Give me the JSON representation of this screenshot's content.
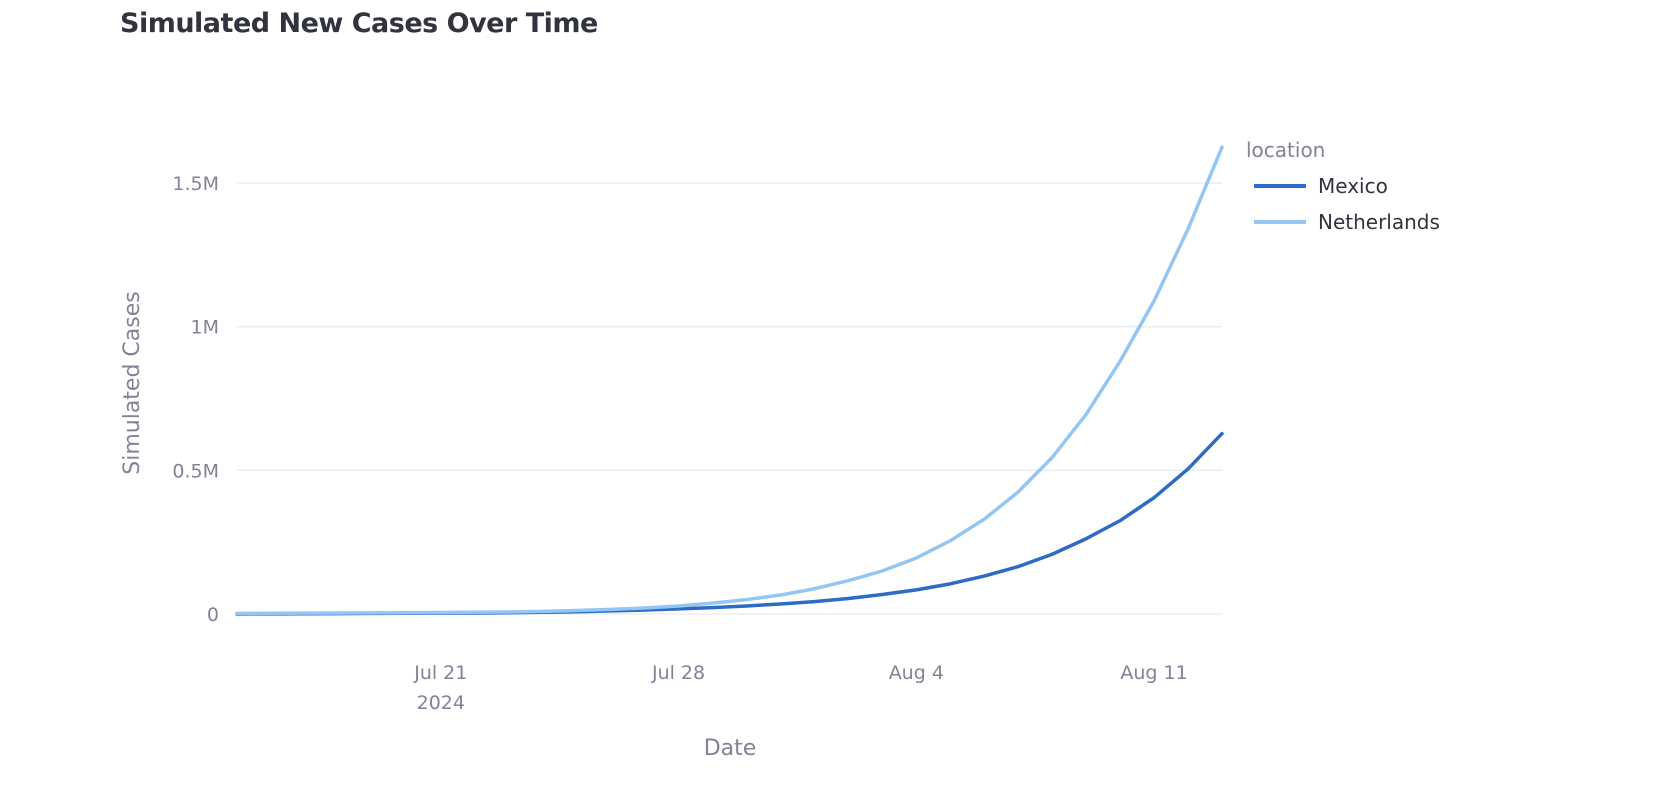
{
  "chart_data": {
    "type": "line",
    "title": "Simulated New Cases Over Time",
    "xlabel": "Date",
    "ylabel": "Simulated Cases",
    "x_domain": [
      "2024-07-15",
      "2024-08-13"
    ],
    "y_domain": [
      0,
      1650000
    ],
    "x_ticks": [
      {
        "date": "2024-07-21",
        "label": "Jul 21",
        "sublabel": "2024"
      },
      {
        "date": "2024-07-28",
        "label": "Jul 28",
        "sublabel": ""
      },
      {
        "date": "2024-08-04",
        "label": "Aug 4",
        "sublabel": ""
      },
      {
        "date": "2024-08-11",
        "label": "Aug 11",
        "sublabel": ""
      }
    ],
    "y_ticks": [
      {
        "value": 0,
        "label": "0"
      },
      {
        "value": 500000,
        "label": "0.5M"
      },
      {
        "value": 1000000,
        "label": "1M"
      },
      {
        "value": 1500000,
        "label": "1.5M"
      }
    ],
    "grid": true,
    "legend": {
      "title": "location",
      "position": "right"
    },
    "x": [
      "2024-07-15",
      "2024-07-16",
      "2024-07-17",
      "2024-07-18",
      "2024-07-19",
      "2024-07-20",
      "2024-07-21",
      "2024-07-22",
      "2024-07-23",
      "2024-07-24",
      "2024-07-25",
      "2024-07-26",
      "2024-07-27",
      "2024-07-28",
      "2024-07-29",
      "2024-07-30",
      "2024-07-31",
      "2024-08-01",
      "2024-08-02",
      "2024-08-03",
      "2024-08-04",
      "2024-08-05",
      "2024-08-06",
      "2024-08-07",
      "2024-08-08",
      "2024-08-09",
      "2024-08-10",
      "2024-08-11",
      "2024-08-12",
      "2024-08-13"
    ],
    "series": [
      {
        "name": "Mexico",
        "color": "#2e6bc4",
        "values": [
          0,
          500,
          1000,
          1500,
          2000,
          2500,
          3000,
          3500,
          4500,
          6000,
          8000,
          11000,
          14000,
          18000,
          22000,
          28000,
          35000,
          43000,
          54000,
          68000,
          84000,
          105000,
          132000,
          165000,
          208000,
          262000,
          325000,
          405000,
          505000,
          628000
        ]
      },
      {
        "name": "Netherlands",
        "color": "#93c6f2",
        "values": [
          2000,
          2500,
          3000,
          3500,
          4000,
          4500,
          5000,
          6000,
          7000,
          9000,
          12000,
          16000,
          21000,
          28000,
          38000,
          50000,
          66000,
          88000,
          116000,
          150000,
          195000,
          255000,
          330000,
          425000,
          545000,
          695000,
          880000,
          1090000,
          1340000,
          1625000
        ]
      }
    ]
  }
}
